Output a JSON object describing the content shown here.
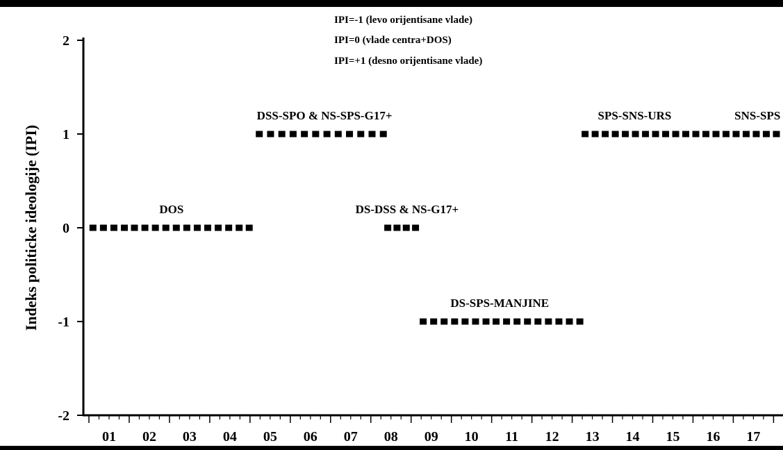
{
  "chart_data": {
    "type": "scatter",
    "title": "",
    "xlabel": "",
    "ylabel": "Indeks politicke ideologije (IPI)",
    "xlim": [
      2000.0,
      2017.2
    ],
    "ylim": [
      -2,
      2
    ],
    "grid": false,
    "x_ticks": [
      "01",
      "02",
      "03",
      "04",
      "05",
      "06",
      "07",
      "08",
      "09",
      "10",
      "11",
      "12",
      "13",
      "14",
      "15",
      "16",
      "17"
    ],
    "y_ticks": [
      "2",
      "1",
      "0",
      "-1",
      "-2"
    ],
    "legend_notes": [
      "IPI=-1 (levo orijentisane vlade)",
      "IPI=0 (vlade centra+DOS)",
      "IPI=+1 (desno orijentisane vlade)"
    ],
    "series": [
      {
        "name": "DOS",
        "value": 0,
        "x": [
          2000.1,
          2000.36,
          2000.62,
          2000.88,
          2001.13,
          2001.39,
          2001.65,
          2001.91,
          2002.17,
          2002.43,
          2002.69,
          2002.95,
          2003.21,
          2003.47,
          2003.73,
          2003.98
        ]
      },
      {
        "name": "DSS-SPO & NS-SPS-G17+",
        "value": 1,
        "x": [
          2004.23,
          2004.51,
          2004.79,
          2005.07,
          2005.35,
          2005.63,
          2005.91,
          2006.19,
          2006.47,
          2006.75,
          2007.03,
          2007.31
        ]
      },
      {
        "name": "DS-DSS & NS-G17+",
        "value": 0,
        "x": [
          2007.42,
          2007.65,
          2007.88,
          2008.11
        ]
      },
      {
        "name": "DS-SPS-MANJINE",
        "value": -1,
        "x": [
          2008.3,
          2008.56,
          2008.82,
          2009.08,
          2009.34,
          2009.6,
          2009.86,
          2010.11,
          2010.37,
          2010.63,
          2010.89,
          2011.15,
          2011.41,
          2011.67,
          2011.93,
          2012.19
        ]
      },
      {
        "name": "SPS-SNS-URS",
        "value": 1,
        "x": [
          2012.32,
          2012.57,
          2012.82,
          2013.07,
          2013.32,
          2013.57,
          2013.82,
          2014.07,
          2014.32,
          2014.57,
          2014.82,
          2015.07,
          2015.32,
          2015.57
        ]
      },
      {
        "name": "SNS-SPS",
        "value": 1,
        "x": [
          2015.82,
          2016.07,
          2016.32,
          2016.57,
          2016.82,
          2017.07
        ]
      }
    ],
    "annotations": [
      {
        "text": "DOS",
        "x": 2002.05,
        "y": 0
      },
      {
        "text": "DSS-SPO & NS-SPS-G17+",
        "x": 2005.85,
        "y": 1
      },
      {
        "text": "DS-DSS & NS-G17+",
        "x": 2007.9,
        "y": 0
      },
      {
        "text": "DS-SPS-MANJINE",
        "x": 2010.2,
        "y": -1
      },
      {
        "text": "SPS-SNS-URS",
        "x": 2013.55,
        "y": 1
      },
      {
        "text": "SNS-SPS",
        "x": 2016.6,
        "y": 1
      }
    ]
  }
}
